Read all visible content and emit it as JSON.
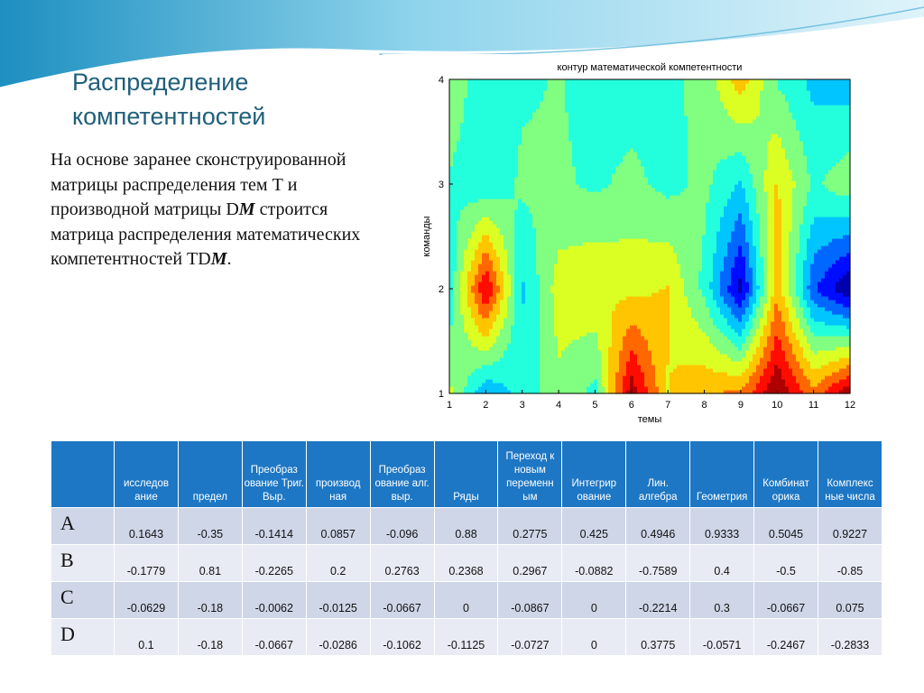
{
  "slide": {
    "title": "Распределение компетентностей",
    "body": {
      "p1": "На основе заранее сконструированной матрицы распределения тем Т и производной матрицы D",
      "m1": "M",
      "p2": " строится матрица  распределения математических компетентностей TD",
      "m2": "M",
      "p3": "."
    }
  },
  "chart_data": {
    "type": "heatmap",
    "title": "контур математической компетентности",
    "xlabel": "темы",
    "ylabel": "команды",
    "x_ticks": [
      "1",
      "2",
      "3",
      "4",
      "5",
      "6",
      "7",
      "8",
      "9",
      "10",
      "11",
      "12"
    ],
    "y_ticks": [
      "1",
      "2",
      "3",
      "4"
    ],
    "x": [
      1,
      2,
      3,
      4,
      5,
      6,
      7,
      8,
      9,
      10,
      11,
      12
    ],
    "y": [
      1,
      2,
      3,
      4
    ],
    "xlim": [
      1,
      12
    ],
    "ylim": [
      1,
      4
    ],
    "grid": false,
    "legend": "none",
    "colormap": "jet",
    "rows": [
      "A",
      "B",
      "C",
      "D"
    ],
    "z": [
      [
        0.1643,
        -0.35,
        -0.1414,
        0.0857,
        -0.096,
        0.88,
        0.2775,
        0.425,
        0.4946,
        0.9333,
        0.5045,
        0.9227
      ],
      [
        -0.1779,
        0.81,
        -0.2265,
        0.2,
        0.2763,
        0.2368,
        0.2967,
        -0.0882,
        -0.7589,
        0.4,
        -0.5,
        -0.85
      ],
      [
        -0.0629,
        -0.18,
        -0.0062,
        -0.0125,
        -0.0667,
        0,
        -0.0867,
        0,
        -0.2214,
        0.3,
        -0.0667,
        0.075
      ],
      [
        0.1,
        -0.18,
        -0.0667,
        -0.0286,
        -0.1062,
        -0.1125,
        -0.0727,
        0,
        0.3775,
        -0.0571,
        -0.2467,
        -0.2833
      ]
    ]
  },
  "table": {
    "headers": [
      "",
      "исследов ание",
      "предел",
      "Преобраз ование Триг. Выр.",
      "производ ная",
      "Преобраз ование алг. выр.",
      "Ряды",
      "Переход к новым переменн ым",
      "Интегрир ование",
      "Лин. алгебра",
      "Геометрия",
      "Комбинат орика",
      "Комплекс ные числа"
    ],
    "rows": [
      {
        "label": "A",
        "values": [
          "0.1643",
          "-0.35",
          "-0.1414",
          "0.0857",
          "-0.096",
          "0.88",
          "0.2775",
          "0.425",
          "0.4946",
          "0.9333",
          "0.5045",
          "0.9227"
        ]
      },
      {
        "label": "B",
        "values": [
          "-0.1779",
          "0.81",
          "-0.2265",
          "0.2",
          "0.2763",
          "0.2368",
          "0.2967",
          "-0.0882",
          "-0.7589",
          "0.4",
          "-0.5",
          "-0.85"
        ]
      },
      {
        "label": "C",
        "values": [
          "-0.0629",
          "-0.18",
          "-0.0062",
          "-0.0125",
          "-0.0667",
          "0",
          "-0.0867",
          "0",
          "-0.2214",
          "0.3",
          "-0.0667",
          "0.075"
        ]
      },
      {
        "label": "D",
        "values": [
          "0.1",
          "-0.18",
          "-0.0667",
          "-0.0286",
          "-0.1062",
          "-0.1125",
          "-0.0727",
          "0",
          "0.3775",
          "-0.0571",
          "-0.2467",
          "-0.2833"
        ]
      }
    ]
  },
  "colors": {
    "header_bg": "#1d77c4",
    "row_odd": "#cfd6e8",
    "row_even": "#e8ebf4",
    "title": "#1f5f7a",
    "wave_light": "#bfe6f3",
    "wave_dark": "#5fb7d8"
  }
}
